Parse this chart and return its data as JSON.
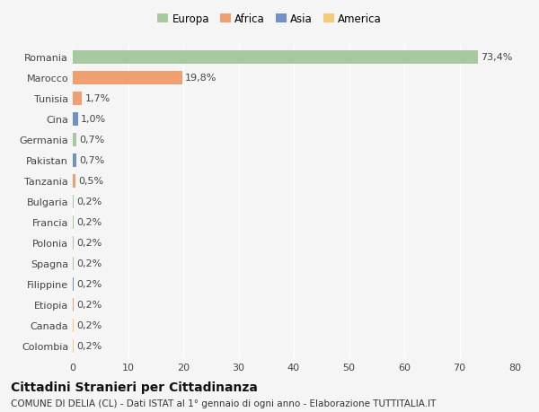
{
  "categories": [
    "Colombia",
    "Canada",
    "Etiopia",
    "Filippine",
    "Spagna",
    "Polonia",
    "Francia",
    "Bulgaria",
    "Tanzania",
    "Pakistan",
    "Germania",
    "Cina",
    "Tunisia",
    "Marocco",
    "Romania"
  ],
  "values": [
    0.2,
    0.2,
    0.2,
    0.2,
    0.2,
    0.2,
    0.2,
    0.2,
    0.5,
    0.7,
    0.7,
    1.0,
    1.7,
    19.8,
    73.4
  ],
  "labels": [
    "0,2%",
    "0,2%",
    "0,2%",
    "0,2%",
    "0,2%",
    "0,2%",
    "0,2%",
    "0,2%",
    "0,5%",
    "0,7%",
    "0,7%",
    "1,0%",
    "1,7%",
    "19,8%",
    "73,4%"
  ],
  "colors": [
    "#f5c87a",
    "#f5c87a",
    "#f0a070",
    "#7090c8",
    "#a8c8a0",
    "#a8c8a0",
    "#a8c8a0",
    "#a8c8a0",
    "#f0a070",
    "#7090c8",
    "#a8c8a0",
    "#7090c8",
    "#f0a070",
    "#f0a070",
    "#a8c8a0"
  ],
  "legend_labels": [
    "Europa",
    "Africa",
    "Asia",
    "America"
  ],
  "legend_colors": [
    "#a8c8a0",
    "#f0a070",
    "#7090c8",
    "#f5c87a"
  ],
  "title": "Cittadini Stranieri per Cittadinanza",
  "subtitle": "COMUNE DI DELIA (CL) - Dati ISTAT al 1° gennaio di ogni anno - Elaborazione TUTTITALIA.IT",
  "xlim": [
    0,
    80
  ],
  "xticks": [
    0,
    10,
    20,
    30,
    40,
    50,
    60,
    70,
    80
  ],
  "background_color": "#f5f5f5",
  "bar_height": 0.65,
  "title_fontsize": 10,
  "subtitle_fontsize": 7.5,
  "tick_fontsize": 8,
  "label_fontsize": 8,
  "legend_fontsize": 8.5,
  "grid_color": "#ffffff",
  "label_color": "#444444"
}
